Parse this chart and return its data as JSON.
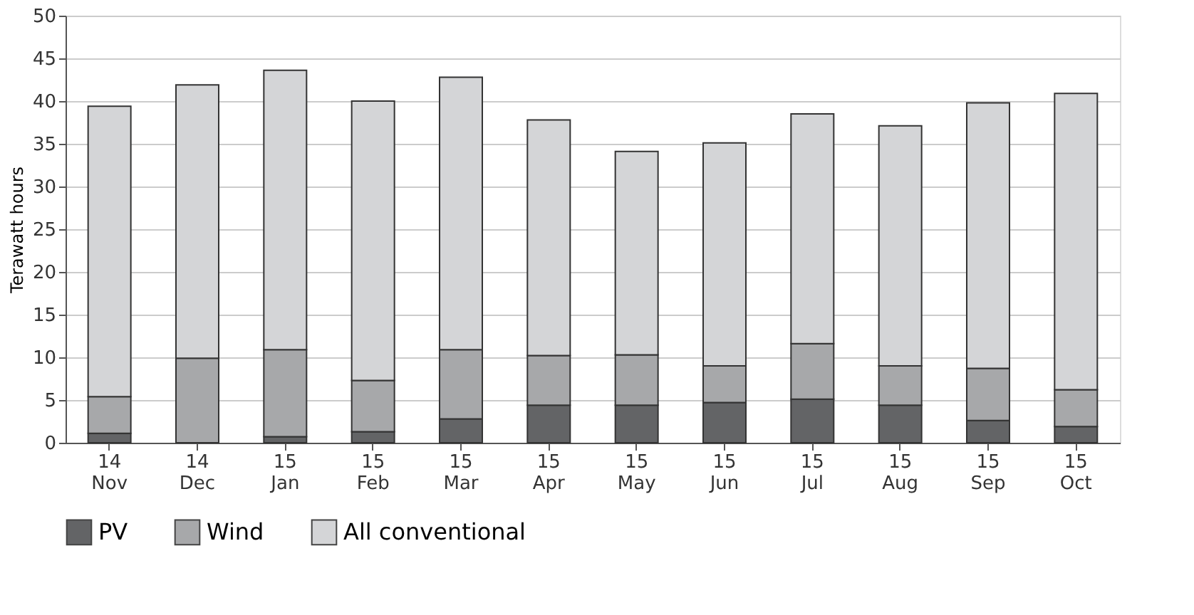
{
  "chart_data": {
    "type": "bar",
    "stacked": true,
    "ylabel": "Terawatt hours",
    "categories": [
      "14\nNov",
      "14\nDec",
      "15\nJan",
      "15\nFeb",
      "15\nMar",
      "15\nApr",
      "15\nMay",
      "15\nJun",
      "15\nJul",
      "15\nAug",
      "15\nSep",
      "15\nOct"
    ],
    "series": [
      {
        "name": "PV",
        "color": "#636466",
        "values": [
          1.1,
          0,
          0.7,
          1.3,
          2.8,
          4.4,
          4.4,
          4.7,
          5.1,
          4.4,
          2.6,
          1.9
        ]
      },
      {
        "name": "Wind",
        "color": "#a7a8aa",
        "values": [
          4.3,
          9.9,
          10.2,
          6.0,
          8.1,
          5.8,
          5.9,
          4.3,
          6.5,
          4.6,
          6.1,
          4.3
        ]
      },
      {
        "name": "All conventional",
        "color": "#d4d5d7",
        "values": [
          34.0,
          32.0,
          32.7,
          32.7,
          31.9,
          27.6,
          23.8,
          26.1,
          26.9,
          28.1,
          31.1,
          34.7
        ]
      }
    ],
    "ylim": [
      0,
      50
    ],
    "yticks": [
      0,
      5,
      10,
      15,
      20,
      25,
      30,
      35,
      40,
      45,
      50
    ],
    "grid": "y",
    "legend": "bottom"
  }
}
